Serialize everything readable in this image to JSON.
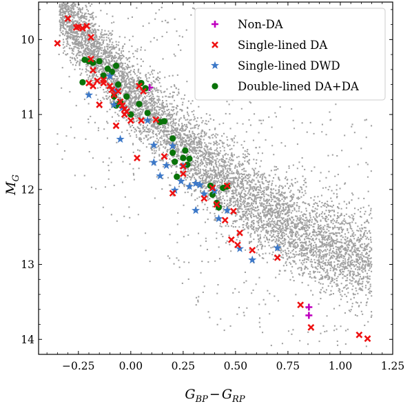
{
  "chart_data": {
    "type": "scatter",
    "xlabel_main": "G",
    "xlabel_sub1": "BP",
    "xlabel_minus": "−",
    "xlabel_sub2": "RP",
    "ylabel_main": "M",
    "ylabel_sub": "G",
    "xlim": [
      -0.44,
      1.25
    ],
    "ylim": [
      14.2,
      9.5
    ],
    "y_inverted": true,
    "x_ticks": [
      -0.25,
      0.0,
      0.25,
      0.5,
      0.75,
      1.0,
      1.25
    ],
    "x_tick_labels": [
      "−0.25",
      "0.00",
      "0.25",
      "0.50",
      "0.75",
      "1.00",
      "1.25"
    ],
    "y_ticks": [
      10,
      11,
      12,
      13,
      14
    ],
    "y_tick_labels": [
      "10",
      "11",
      "12",
      "13",
      "14"
    ],
    "grid": false,
    "legend_position": "top-right",
    "background_sequence": {
      "color": "#a0a0a0",
      "x_range": [
        -0.35,
        1.15
      ],
      "y_range": [
        9.5,
        14.1
      ]
    },
    "series": [
      {
        "name": "Non-DA",
        "marker": "plus",
        "color": "#bf00bf",
        "points": [
          [
            0.09,
            10.64
          ],
          [
            0.85,
            13.57
          ],
          [
            0.85,
            13.68
          ]
        ]
      },
      {
        "name": "Single-lined DA",
        "marker": "x",
        "color": "#ee1111",
        "points": [
          [
            -0.35,
            10.05
          ],
          [
            -0.3,
            9.72
          ],
          [
            -0.26,
            9.84
          ],
          [
            -0.25,
            9.83
          ],
          [
            -0.23,
            9.85
          ],
          [
            -0.21,
            9.82
          ],
          [
            -0.19,
            9.97
          ],
          [
            -0.19,
            10.26
          ],
          [
            -0.18,
            10.41
          ],
          [
            -0.2,
            10.58
          ],
          [
            -0.18,
            10.62
          ],
          [
            -0.16,
            10.55
          ],
          [
            -0.13,
            10.54
          ],
          [
            -0.13,
            10.58
          ],
          [
            -0.15,
            10.87
          ],
          [
            -0.1,
            10.62
          ],
          [
            -0.09,
            10.67
          ],
          [
            -0.08,
            10.74
          ],
          [
            -0.06,
            10.69
          ],
          [
            -0.05,
            10.83
          ],
          [
            -0.07,
            11.15
          ],
          [
            -0.04,
            10.88
          ],
          [
            -0.03,
            10.93
          ],
          [
            -0.02,
            10.96
          ],
          [
            -0.03,
            11.0
          ],
          [
            0.04,
            10.62
          ],
          [
            0.06,
            10.69
          ],
          [
            0.05,
            11.08
          ],
          [
            0.0,
            11.08
          ],
          [
            0.03,
            11.58
          ],
          [
            0.12,
            11.07
          ],
          [
            0.16,
            11.56
          ],
          [
            0.2,
            12.05
          ],
          [
            0.25,
            11.69
          ],
          [
            0.25,
            11.79
          ],
          [
            0.35,
            12.12
          ],
          [
            0.39,
            11.98
          ],
          [
            0.46,
            11.95
          ],
          [
            0.41,
            12.2
          ],
          [
            0.45,
            12.41
          ],
          [
            0.49,
            12.29
          ],
          [
            0.52,
            12.58
          ],
          [
            0.48,
            12.67
          ],
          [
            0.51,
            12.74
          ],
          [
            0.58,
            12.81
          ],
          [
            0.7,
            12.91
          ],
          [
            0.81,
            13.54
          ],
          [
            0.86,
            13.84
          ],
          [
            1.09,
            13.94
          ],
          [
            1.13,
            13.99
          ]
        ]
      },
      {
        "name": "Single-lined DWD",
        "marker": "star",
        "color": "#3c78c8",
        "points": [
          [
            -0.2,
            10.74
          ],
          [
            -0.1,
            10.49
          ],
          [
            -0.07,
            10.68
          ],
          [
            -0.08,
            10.87
          ],
          [
            -0.04,
            10.91
          ],
          [
            -0.05,
            11.33
          ],
          [
            0.08,
            11.08
          ],
          [
            0.11,
            11.41
          ],
          [
            0.11,
            11.64
          ],
          [
            0.14,
            11.82
          ],
          [
            0.17,
            11.68
          ],
          [
            0.2,
            11.42
          ],
          [
            0.21,
            12.01
          ],
          [
            0.24,
            11.89
          ],
          [
            0.25,
            11.69
          ],
          [
            0.28,
            11.96
          ],
          [
            0.31,
            11.92
          ],
          [
            0.33,
            11.94
          ],
          [
            0.31,
            12.28
          ],
          [
            0.35,
            12.06
          ],
          [
            0.4,
            12.02
          ],
          [
            0.42,
            12.39
          ],
          [
            0.46,
            12.28
          ],
          [
            0.52,
            12.79
          ],
          [
            0.58,
            12.94
          ],
          [
            0.7,
            12.78
          ]
        ]
      },
      {
        "name": "Double-lined DA+DA",
        "marker": "circle",
        "color": "#097309",
        "points": [
          [
            -0.23,
            10.57
          ],
          [
            -0.22,
            10.27
          ],
          [
            -0.2,
            10.29
          ],
          [
            -0.18,
            10.31
          ],
          [
            -0.15,
            10.29
          ],
          [
            -0.13,
            10.48
          ],
          [
            -0.11,
            10.39
          ],
          [
            -0.09,
            10.43
          ],
          [
            -0.07,
            10.35
          ],
          [
            -0.06,
            10.6
          ],
          [
            -0.08,
            10.76
          ],
          [
            -0.07,
            10.88
          ],
          [
            -0.05,
            10.84
          ],
          [
            -0.02,
            10.76
          ],
          [
            0.0,
            11.0
          ],
          [
            0.05,
            10.58
          ],
          [
            0.07,
            10.65
          ],
          [
            0.04,
            10.86
          ],
          [
            0.08,
            10.98
          ],
          [
            0.14,
            11.1
          ],
          [
            0.16,
            11.09
          ],
          [
            0.2,
            11.32
          ],
          [
            0.2,
            11.51
          ],
          [
            0.21,
            11.63
          ],
          [
            0.22,
            11.83
          ],
          [
            0.25,
            11.58
          ],
          [
            0.26,
            11.48
          ],
          [
            0.27,
            11.67
          ],
          [
            0.28,
            11.59
          ],
          [
            0.38,
            11.95
          ],
          [
            0.39,
            12.07
          ],
          [
            0.41,
            12.18
          ],
          [
            0.42,
            12.24
          ],
          [
            0.44,
            11.98
          ],
          [
            0.46,
            11.96
          ]
        ]
      }
    ]
  }
}
